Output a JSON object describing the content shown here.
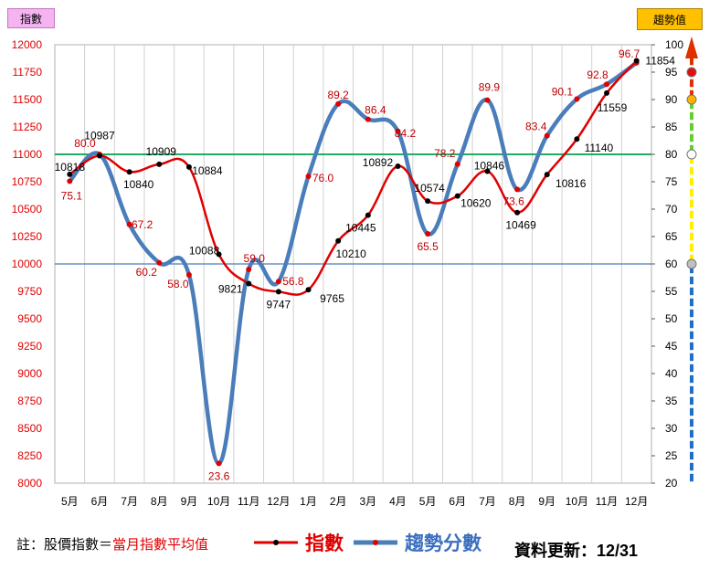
{
  "badges": {
    "left": "指數",
    "right": "趨勢值"
  },
  "footer": {
    "note_prefix": "註：股價指數＝",
    "note_highlight": "當月指數平均值",
    "legend_index": "指數",
    "legend_trend": "趨勢分數",
    "update_label": "資料更新：",
    "update_date": "12/31"
  },
  "colors": {
    "index_line": "#e00000",
    "trend_line": "#4a7ebb",
    "ref_80": "#00a050",
    "ref_60": "#4a7ebb"
  },
  "chart_data": {
    "type": "line",
    "categories": [
      "5月",
      "6月",
      "7月",
      "8月",
      "9月",
      "10月",
      "11月",
      "12月",
      "1月",
      "2月",
      "3月",
      "4月",
      "5月",
      "6月",
      "7月",
      "8月",
      "9月",
      "10月",
      "11月",
      "12月"
    ],
    "series": [
      {
        "name": "指數",
        "axis": "left",
        "values": [
          10818,
          10987,
          10840,
          10909,
          10884,
          10088,
          9821,
          9747,
          9765,
          10210,
          10445,
          10892,
          10574,
          10620,
          10846,
          10469,
          10816,
          11140,
          11559,
          11854
        ]
      },
      {
        "name": "趨勢分數",
        "axis": "right",
        "values": [
          75.1,
          80.0,
          67.2,
          60.2,
          58.0,
          23.6,
          59.0,
          56.8,
          76.0,
          89.2,
          86.4,
          84.2,
          65.5,
          78.2,
          89.9,
          73.6,
          83.4,
          90.1,
          92.8,
          96.7
        ]
      }
    ],
    "left_ticks": [
      "12000",
      "11750",
      "11500",
      "11250",
      "11000",
      "10750",
      "10500",
      "10250",
      "10000",
      "9750",
      "9500",
      "9250",
      "9000",
      "8750",
      "8500",
      "8250",
      "8000"
    ],
    "right_ticks": [
      "100",
      "95",
      "90",
      "85",
      "80",
      "75",
      "70",
      "65",
      "60",
      "55",
      "50",
      "45",
      "40",
      "35",
      "30",
      "25",
      "20"
    ],
    "ylim_left": [
      8000,
      12000
    ],
    "ylim_right": [
      20,
      100
    ],
    "reference_lines": [
      {
        "value": 80,
        "color": "#00a050"
      },
      {
        "value": 60,
        "color": "#4a7ebb"
      }
    ],
    "grid": "vertical"
  }
}
